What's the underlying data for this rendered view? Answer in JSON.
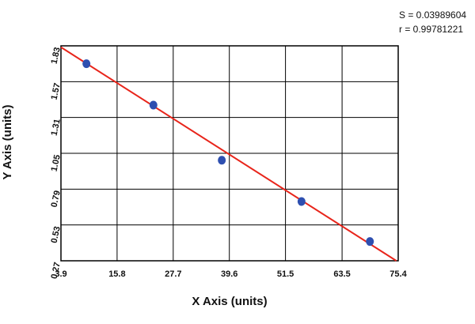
{
  "chart_data": {
    "type": "scatter",
    "x_label": "X Axis (units)",
    "y_label": "Y Axis (units)",
    "annotations": [
      "S = 0.03989604",
      "r = 0.99781221"
    ],
    "series": [
      {
        "color": "#2e4fb0",
        "x": [
          9.3,
          23.5,
          38.0,
          54.9,
          69.4
        ],
        "values": [
          1.7,
          1.4,
          1.0,
          0.7,
          0.41
        ]
      }
    ],
    "fit": {
      "color": "#e8251b",
      "x": [
        3.9,
        75.0
      ],
      "values": [
        1.82,
        0.27
      ]
    },
    "xlim": [
      3.9,
      75.4
    ],
    "xticks": [
      3.9,
      15.8,
      27.7,
      39.6,
      51.5,
      63.5,
      75.4
    ],
    "ylim": [
      0.27,
      1.83
    ],
    "yticks": [
      0.27,
      0.53,
      0.79,
      1.05,
      1.31,
      1.57,
      1.83
    ],
    "grid": true
  }
}
